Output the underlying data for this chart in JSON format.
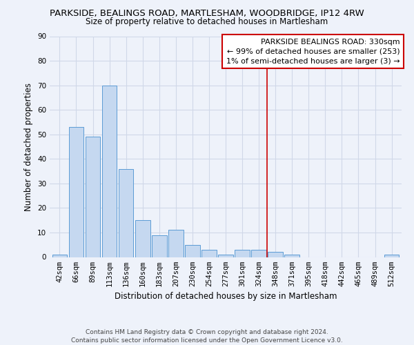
{
  "title": "PARKSIDE, BEALINGS ROAD, MARTLESHAM, WOODBRIDGE, IP12 4RW",
  "subtitle": "Size of property relative to detached houses in Martlesham",
  "xlabel": "Distribution of detached houses by size in Martlesham",
  "ylabel": "Number of detached properties",
  "bar_labels": [
    "42sqm",
    "66sqm",
    "89sqm",
    "113sqm",
    "136sqm",
    "160sqm",
    "183sqm",
    "207sqm",
    "230sqm",
    "254sqm",
    "277sqm",
    "301sqm",
    "324sqm",
    "348sqm",
    "371sqm",
    "395sqm",
    "418sqm",
    "442sqm",
    "465sqm",
    "489sqm",
    "512sqm"
  ],
  "bar_values": [
    1,
    53,
    49,
    70,
    36,
    15,
    9,
    11,
    5,
    3,
    1,
    3,
    3,
    2,
    1,
    0,
    0,
    0,
    0,
    0,
    1
  ],
  "bar_color": "#c5d8f0",
  "bar_edge_color": "#5b9bd5",
  "vline_x_index": 12.5,
  "vline_color": "#cc0000",
  "ylim": [
    0,
    90
  ],
  "yticks": [
    0,
    10,
    20,
    30,
    40,
    50,
    60,
    70,
    80,
    90
  ],
  "legend_title": "PARKSIDE BEALINGS ROAD: 330sqm",
  "legend_line1": "← 99% of detached houses are smaller (253)",
  "legend_line2": "1% of semi-detached houses are larger (3) →",
  "footer_line1": "Contains HM Land Registry data © Crown copyright and database right 2024.",
  "footer_line2": "Contains public sector information licensed under the Open Government Licence v3.0.",
  "bg_color": "#eef2fa",
  "grid_color": "#d0d8e8",
  "title_fontsize": 9.5,
  "subtitle_fontsize": 8.5,
  "xlabel_fontsize": 8.5,
  "ylabel_fontsize": 8.5,
  "tick_fontsize": 7.5,
  "footer_fontsize": 6.5,
  "legend_fontsize": 8.0
}
